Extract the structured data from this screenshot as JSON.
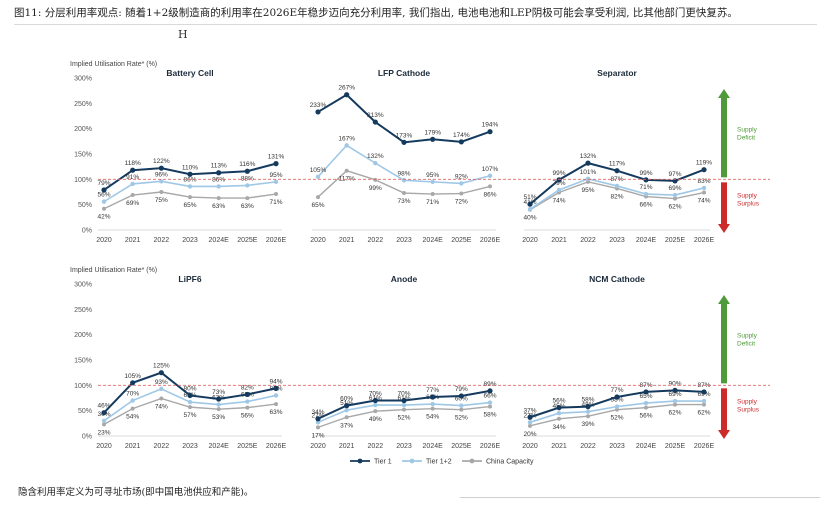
{
  "caption": "图11: 分层利用率观点: 随着1+2级制造商的利用率在2026E年稳步迈向充分利用率, 我们指出, 电池电池和LEP阴极可能会享受利润, 比其他部门更快复苏。",
  "hmark": "H",
  "footnote": "隐含利用率定义为可寻址市场(即中国电池供应和产能)。",
  "colors": {
    "tier1": "#143a5e",
    "tier12": "#9fc8e6",
    "china": "#a8a8a8",
    "deficit": "#4f9a3a",
    "surplus": "#cc2b2b",
    "threshold": "#e06666"
  },
  "chart_data": {
    "type": "line",
    "years": [
      "2020",
      "2021",
      "2022",
      "2023",
      "2024E",
      "2025E",
      "2026E"
    ],
    "ylabel": "Implied Utilisation Rate* (%)",
    "yticks": [
      "0%",
      "50%",
      "100%",
      "150%",
      "200%",
      "250%",
      "300%"
    ],
    "ylim": [
      0,
      300
    ],
    "threshold": 100,
    "legend": [
      "Tier 1",
      "Tier 1+2",
      "China Capacity"
    ],
    "supply_deficit": "Supply Deficit",
    "supply_surplus": "Supply Surplus",
    "panels": [
      {
        "title": "Battery Cell",
        "tier1": [
          79,
          118,
          122,
          110,
          113,
          116,
          131
        ],
        "tier12": [
          56,
          91,
          96,
          86,
          86,
          88,
          95
        ],
        "china": [
          42,
          69,
          75,
          65,
          63,
          63,
          71
        ]
      },
      {
        "title": "LFP Cathode",
        "tier1": [
          233,
          267,
          213,
          173,
          179,
          174,
          194
        ],
        "tier12": [
          105,
          167,
          132,
          98,
          95,
          92,
          107
        ],
        "china": [
          65,
          117,
          99,
          73,
          71,
          72,
          86
        ]
      },
      {
        "title": "Separator",
        "tier1": [
          51,
          99,
          132,
          117,
          99,
          97,
          119
        ],
        "tier12": [
          41,
          79,
          101,
          87,
          71,
          69,
          83
        ],
        "china": [
          40,
          74,
          95,
          82,
          66,
          62,
          74
        ]
      },
      {
        "title": "LiPF6",
        "tier1": [
          46,
          105,
          125,
          80,
          73,
          82,
          94
        ],
        "tier12": [
          30,
          70,
          93,
          67,
          62,
          68,
          80
        ],
        "china": [
          23,
          54,
          74,
          57,
          53,
          56,
          63
        ]
      },
      {
        "title": "Anode",
        "tier1": [
          34,
          60,
          70,
          70,
          77,
          79,
          89
        ],
        "tier12": [
          27,
          51,
          61,
          61,
          63,
          60,
          66
        ],
        "china": [
          17,
          37,
          49,
          52,
          54,
          52,
          58
        ]
      },
      {
        "title": "NCM Cathode",
        "tier1": [
          37,
          56,
          58,
          77,
          87,
          90,
          87
        ],
        "tier12": [
          27,
          45,
          48,
          58,
          65,
          69,
          69
        ],
        "china": [
          20,
          34,
          39,
          52,
          56,
          62,
          62
        ]
      }
    ]
  }
}
